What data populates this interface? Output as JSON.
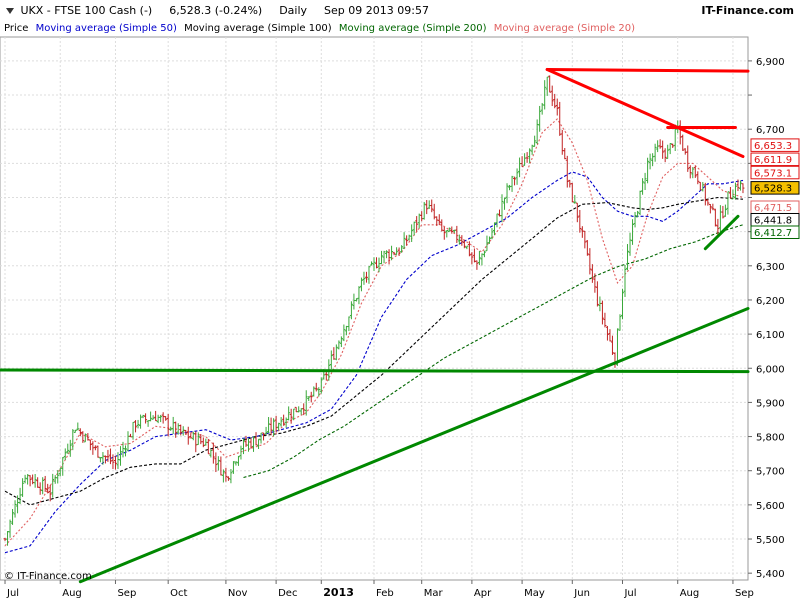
{
  "header": {
    "symbol": "UKX - FTSE 100 Cash (-)",
    "quote": "6,528.3 (-0.24%)",
    "interval": "Daily",
    "datetime": "Sep 09 2013 09:57",
    "brand": "IT-Finance.com"
  },
  "footer": {
    "copyright": "© IT-Finance.com"
  },
  "colors": {
    "up": "#3aa83a",
    "down": "#c02020",
    "ma50": "#0000cc",
    "ma100": "#000000",
    "ma200": "#006600",
    "ma20": "#e06060",
    "trend_red": "#ff0000",
    "trend_green": "#008800"
  },
  "legend": [
    {
      "label": "Price",
      "color": "#000000"
    },
    {
      "label": "Moving average (Simple 50)",
      "color": "#0000cc"
    },
    {
      "label": "Moving average (Simple 100)",
      "color": "#000000"
    },
    {
      "label": "Moving average (Simple 200)",
      "color": "#006600"
    },
    {
      "label": "Moving average (Simple 20)",
      "color": "#e06060"
    }
  ],
  "chart_data": {
    "type": "line",
    "title": "UKX - FTSE 100 Cash (-)",
    "ylim": [
      5380,
      6970
    ],
    "y_ticks": [
      5400,
      5500,
      5600,
      5700,
      5800,
      5900,
      6000,
      6100,
      6200,
      6300,
      6400,
      6500,
      6600,
      6700,
      6800,
      6900
    ],
    "y_tick_labels": [
      "5,400",
      "5,500",
      "5,600",
      "5,700",
      "5,800",
      "5,900",
      "6,000",
      "6,100",
      "6,200",
      "6,300",
      "",
      "",
      "",
      "6,700",
      "",
      "6,900"
    ],
    "x_labels": [
      {
        "label": "Jul",
        "day": 0
      },
      {
        "label": "Aug",
        "day": 22
      },
      {
        "label": "Sep",
        "day": 44
      },
      {
        "label": "Oct",
        "day": 65
      },
      {
        "label": "Nov",
        "day": 88
      },
      {
        "label": "Dec",
        "day": 108
      },
      {
        "label": "2013",
        "day": 126,
        "bold": true
      },
      {
        "label": "Feb",
        "day": 147
      },
      {
        "label": "Mar",
        "day": 166
      },
      {
        "label": "Apr",
        "day": 186
      },
      {
        "label": "May",
        "day": 206
      },
      {
        "label": "Jun",
        "day": 226
      },
      {
        "label": "Jul",
        "day": 246
      },
      {
        "label": "Aug",
        "day": 268
      },
      {
        "label": "Sep",
        "day": 290
      }
    ],
    "x_range": [
      -2,
      296
    ],
    "price_points": [
      [
        0,
        5500
      ],
      [
        8,
        5690
      ],
      [
        18,
        5640
      ],
      [
        28,
        5830
      ],
      [
        36,
        5760
      ],
      [
        44,
        5720
      ],
      [
        52,
        5840
      ],
      [
        60,
        5860
      ],
      [
        70,
        5810
      ],
      [
        80,
        5780
      ],
      [
        88,
        5680
      ],
      [
        94,
        5770
      ],
      [
        100,
        5790
      ],
      [
        110,
        5850
      ],
      [
        120,
        5900
      ],
      [
        126,
        5950
      ],
      [
        134,
        6100
      ],
      [
        142,
        6250
      ],
      [
        150,
        6330
      ],
      [
        158,
        6350
      ],
      [
        164,
        6430
      ],
      [
        168,
        6480
      ],
      [
        174,
        6400
      ],
      [
        182,
        6380
      ],
      [
        188,
        6300
      ],
      [
        194,
        6400
      ],
      [
        200,
        6520
      ],
      [
        206,
        6600
      ],
      [
        212,
        6700
      ],
      [
        216,
        6840
      ],
      [
        220,
        6750
      ],
      [
        224,
        6550
      ],
      [
        228,
        6450
      ],
      [
        232,
        6320
      ],
      [
        236,
        6200
      ],
      [
        240,
        6100
      ],
      [
        243,
        6030
      ],
      [
        247,
        6300
      ],
      [
        251,
        6440
      ],
      [
        256,
        6600
      ],
      [
        260,
        6640
      ],
      [
        264,
        6630
      ],
      [
        268,
        6700
      ],
      [
        272,
        6600
      ],
      [
        276,
        6560
      ],
      [
        280,
        6480
      ],
      [
        284,
        6420
      ],
      [
        288,
        6500
      ],
      [
        292,
        6540
      ],
      [
        294,
        6528
      ]
    ],
    "series": [
      {
        "name": "Moving average (Simple 50)",
        "color": "#0000cc",
        "dash": "3,2",
        "points": [
          [
            0,
            5460
          ],
          [
            10,
            5480
          ],
          [
            20,
            5580
          ],
          [
            30,
            5660
          ],
          [
            40,
            5730
          ],
          [
            50,
            5760
          ],
          [
            60,
            5800
          ],
          [
            70,
            5810
          ],
          [
            80,
            5820
          ],
          [
            90,
            5790
          ],
          [
            100,
            5800
          ],
          [
            110,
            5820
          ],
          [
            120,
            5840
          ],
          [
            130,
            5880
          ],
          [
            140,
            5980
          ],
          [
            150,
            6150
          ],
          [
            160,
            6260
          ],
          [
            170,
            6330
          ],
          [
            180,
            6360
          ],
          [
            190,
            6400
          ],
          [
            200,
            6440
          ],
          [
            210,
            6500
          ],
          [
            220,
            6550
          ],
          [
            226,
            6575
          ],
          [
            232,
            6560
          ],
          [
            238,
            6500
          ],
          [
            244,
            6460
          ],
          [
            250,
            6445
          ],
          [
            256,
            6445
          ],
          [
            262,
            6430
          ],
          [
            268,
            6460
          ],
          [
            274,
            6500
          ],
          [
            280,
            6540
          ],
          [
            286,
            6540
          ],
          [
            294,
            6550
          ]
        ]
      },
      {
        "name": "Moving average (Simple 100)",
        "color": "#000000",
        "dash": "3,2",
        "points": [
          [
            0,
            5640
          ],
          [
            10,
            5600
          ],
          [
            20,
            5620
          ],
          [
            30,
            5640
          ],
          [
            40,
            5680
          ],
          [
            50,
            5710
          ],
          [
            60,
            5720
          ],
          [
            70,
            5720
          ],
          [
            80,
            5760
          ],
          [
            90,
            5780
          ],
          [
            100,
            5800
          ],
          [
            110,
            5810
          ],
          [
            120,
            5830
          ],
          [
            130,
            5860
          ],
          [
            140,
            5920
          ],
          [
            150,
            5980
          ],
          [
            160,
            6050
          ],
          [
            170,
            6120
          ],
          [
            180,
            6190
          ],
          [
            190,
            6260
          ],
          [
            200,
            6320
          ],
          [
            210,
            6380
          ],
          [
            220,
            6440
          ],
          [
            230,
            6480
          ],
          [
            240,
            6485
          ],
          [
            250,
            6470
          ],
          [
            256,
            6465
          ],
          [
            262,
            6470
          ],
          [
            268,
            6480
          ],
          [
            276,
            6490
          ],
          [
            284,
            6500
          ],
          [
            294,
            6495
          ]
        ]
      },
      {
        "name": "Moving average (Simple 200)",
        "color": "#006600",
        "dash": "3,2",
        "points": [
          [
            95,
            5680
          ],
          [
            105,
            5700
          ],
          [
            115,
            5740
          ],
          [
            125,
            5790
          ],
          [
            135,
            5830
          ],
          [
            145,
            5880
          ],
          [
            155,
            5930
          ],
          [
            165,
            5980
          ],
          [
            175,
            6030
          ],
          [
            185,
            6070
          ],
          [
            195,
            6110
          ],
          [
            205,
            6150
          ],
          [
            215,
            6190
          ],
          [
            225,
            6230
          ],
          [
            235,
            6270
          ],
          [
            245,
            6300
          ],
          [
            255,
            6320
          ],
          [
            265,
            6350
          ],
          [
            275,
            6370
          ],
          [
            285,
            6400
          ],
          [
            294,
            6420
          ]
        ]
      },
      {
        "name": "Moving average (Simple 20)",
        "color": "#e06060",
        "dash": "2,2",
        "points": [
          [
            0,
            5480
          ],
          [
            10,
            5560
          ],
          [
            20,
            5680
          ],
          [
            30,
            5810
          ],
          [
            40,
            5770
          ],
          [
            50,
            5780
          ],
          [
            60,
            5830
          ],
          [
            70,
            5820
          ],
          [
            80,
            5800
          ],
          [
            88,
            5740
          ],
          [
            96,
            5760
          ],
          [
            104,
            5780
          ],
          [
            112,
            5840
          ],
          [
            120,
            5870
          ],
          [
            126,
            5930
          ],
          [
            134,
            6040
          ],
          [
            142,
            6190
          ],
          [
            150,
            6300
          ],
          [
            158,
            6340
          ],
          [
            166,
            6420
          ],
          [
            174,
            6420
          ],
          [
            182,
            6380
          ],
          [
            190,
            6340
          ],
          [
            198,
            6420
          ],
          [
            206,
            6540
          ],
          [
            214,
            6690
          ],
          [
            220,
            6730
          ],
          [
            226,
            6660
          ],
          [
            232,
            6550
          ],
          [
            238,
            6380
          ],
          [
            244,
            6250
          ],
          [
            250,
            6300
          ],
          [
            256,
            6450
          ],
          [
            262,
            6560
          ],
          [
            268,
            6600
          ],
          [
            274,
            6600
          ],
          [
            280,
            6560
          ],
          [
            286,
            6520
          ],
          [
            294,
            6500
          ]
        ]
      }
    ],
    "reference_lines": [
      {
        "name": "resistance-trendline",
        "color": "#ff0000",
        "points": [
          [
            216,
            6875
          ],
          [
            294,
            6620
          ]
        ]
      },
      {
        "name": "horizontal-top",
        "color": "#ff0000",
        "points": [
          [
            216,
            6875
          ],
          [
            296,
            6870
          ]
        ]
      },
      {
        "name": "horizontal-aug-high",
        "color": "#ff0000",
        "points": [
          [
            264,
            6705
          ],
          [
            291,
            6705
          ]
        ]
      },
      {
        "name": "support-6000",
        "color": "#008800",
        "points": [
          [
            -2,
            5995
          ],
          [
            296,
            5990
          ]
        ]
      },
      {
        "name": "long-uptrend",
        "color": "#008800",
        "points": [
          [
            30,
            5375
          ],
          [
            296,
            6175
          ]
        ]
      },
      {
        "name": "short-uptrend",
        "color": "#008800",
        "points": [
          [
            279,
            6350
          ],
          [
            292,
            6445
          ]
        ]
      }
    ],
    "price_tags": [
      {
        "label": "6,653.3",
        "value": 6653.3,
        "color": "#e01010",
        "fill": "#ffffff"
      },
      {
        "label": "6,611.9",
        "value": 6611.9,
        "color": "#e01010",
        "fill": "#ffffff"
      },
      {
        "label": "6,573.1",
        "value": 6573.1,
        "color": "#e01010",
        "fill": "#ffffff"
      },
      {
        "label": "6,528.3",
        "value": 6528.3,
        "color": "#000000",
        "fill": "#f5c000"
      },
      {
        "label": "6,471.5",
        "value": 6471.5,
        "color": "#e06060",
        "fill": "#ffffff"
      },
      {
        "label": "6,441.8",
        "value": 6441.8,
        "color": "#000000",
        "fill": "#ffffff"
      },
      {
        "label": "6,412.7",
        "value": 6412.7,
        "color": "#006600",
        "fill": "#ffffff"
      }
    ]
  }
}
